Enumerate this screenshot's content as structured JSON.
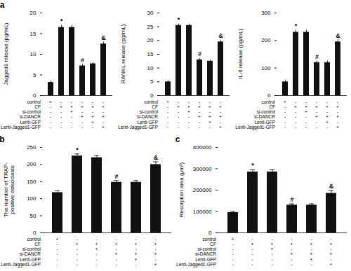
{
  "chart_data": [
    {
      "type": "bar",
      "panel_label": "a",
      "categories": [
        null,
        null,
        null,
        null,
        null,
        null
      ],
      "values": [
        3.2,
        16.5,
        16.5,
        7.2,
        7.7,
        12.5
      ],
      "errors": [
        0.3,
        0.5,
        0.5,
        0.4,
        0.4,
        0.5
      ],
      "y_label": "Jagged1 release (pg/mL)",
      "ylim": [
        0,
        20
      ],
      "yticks": [
        0,
        5,
        10,
        15,
        20
      ],
      "color": "#111111",
      "tick_labels": "y",
      "annotations": [
        {
          "index": 1,
          "text": "*"
        },
        {
          "index": 3,
          "text": "#"
        },
        {
          "index": 5,
          "text": "&"
        }
      ],
      "table": {
        "rows": [
          "control",
          "CF",
          "si-control",
          "si-DANCR",
          "Lenti-GFP",
          "Lenti-Jagged1-GFP"
        ],
        "values": [
          [
            "+",
            "-",
            "-",
            "-",
            "-",
            "-"
          ],
          [
            "-",
            "+",
            "+",
            "+",
            "+",
            "+"
          ],
          [
            "-",
            "-",
            "+",
            "-",
            "-",
            "-"
          ],
          [
            "-",
            "-",
            "-",
            "+",
            "+",
            "+"
          ],
          [
            "-",
            "-",
            "-",
            "-",
            "+",
            "-"
          ],
          [
            "-",
            "-",
            "-",
            "-",
            "-",
            "+"
          ]
        ]
      }
    },
    {
      "type": "bar",
      "categories": [
        null,
        null,
        null,
        null,
        null,
        null
      ],
      "values": [
        5.0,
        25.5,
        25.5,
        13.0,
        12.5,
        19.5
      ],
      "errors": [
        0.4,
        0.5,
        0.5,
        0.5,
        0.4,
        0.6
      ],
      "y_label": "RANKL release (pg/mL)",
      "ylim": [
        0,
        30
      ],
      "yticks": [
        0,
        5,
        10,
        15,
        20,
        25,
        30
      ],
      "color": "#111111",
      "tick_labels": "y",
      "annotations": [
        {
          "index": 1,
          "text": "*"
        },
        {
          "index": 3,
          "text": "#"
        },
        {
          "index": 5,
          "text": "&"
        }
      ],
      "table": {
        "rows": [
          "control",
          "CF",
          "si-control",
          "si-DANCR",
          "Lenti-GFP",
          "Lenti-Jagged1-GFP"
        ],
        "values": [
          [
            "+",
            "-",
            "-",
            "-",
            "-",
            "-"
          ],
          [
            "-",
            "+",
            "+",
            "+",
            "+",
            "+"
          ],
          [
            "-",
            "-",
            "+",
            "-",
            "-",
            "-"
          ],
          [
            "-",
            "-",
            "-",
            "+",
            "+",
            "+"
          ],
          [
            "-",
            "-",
            "-",
            "-",
            "+",
            "-"
          ],
          [
            "-",
            "-",
            "-",
            "-",
            "-",
            "+"
          ]
        ]
      }
    },
    {
      "type": "bar",
      "categories": [
        null,
        null,
        null,
        null,
        null,
        null
      ],
      "values": [
        50,
        230,
        230,
        120,
        120,
        195
      ],
      "errors": [
        5,
        8,
        8,
        6,
        6,
        8
      ],
      "y_label": "IL-6 release (pg/mL)",
      "ylim": [
        0,
        300
      ],
      "yticks": [
        0,
        100,
        200,
        300
      ],
      "color": "#111111",
      "tick_labels": "y",
      "annotations": [
        {
          "index": 1,
          "text": "*"
        },
        {
          "index": 3,
          "text": "#"
        },
        {
          "index": 5,
          "text": "&"
        }
      ],
      "table": {
        "rows": [
          "control",
          "CF",
          "si-control",
          "si-DANCR",
          "Lenti-GFP",
          "Lenti-Jagged1-GFP"
        ],
        "values": [
          [
            "+",
            "-",
            "-",
            "-",
            "-",
            "-"
          ],
          [
            "-",
            "+",
            "+",
            "+",
            "+",
            "+"
          ],
          [
            "-",
            "-",
            "+",
            "-",
            "-",
            "-"
          ],
          [
            "-",
            "-",
            "-",
            "+",
            "+",
            "+"
          ],
          [
            "-",
            "-",
            "-",
            "-",
            "+",
            "-"
          ],
          [
            "-",
            "-",
            "-",
            "-",
            "-",
            "+"
          ]
        ]
      }
    },
    {
      "type": "bar",
      "panel_label": "b",
      "categories": [
        null,
        null,
        null,
        null,
        null,
        null
      ],
      "values": [
        118,
        225,
        220,
        148,
        148,
        200
      ],
      "errors": [
        5,
        6,
        6,
        5,
        5,
        8
      ],
      "y_label": "The number of TRAP-\npositive osteoclasts",
      "ylim": [
        0,
        250
      ],
      "yticks": [
        0,
        50,
        100,
        150,
        200,
        250
      ],
      "color": "#111111",
      "tick_labels": "y",
      "annotations": [
        {
          "index": 1,
          "text": "*"
        },
        {
          "index": 3,
          "text": "#"
        },
        {
          "index": 5,
          "text": "&"
        }
      ],
      "table": {
        "rows": [
          "control",
          "CF",
          "si-control",
          "si-DANCR",
          "Lenti-GFP",
          "Lenti-Jagged1-GFP"
        ],
        "values": [
          [
            "+",
            "-",
            "-",
            "-",
            "-",
            "-"
          ],
          [
            "-",
            "+",
            "+",
            "+",
            "+",
            "+"
          ],
          [
            "-",
            "-",
            "+",
            "-",
            "-",
            "-"
          ],
          [
            "-",
            "-",
            "-",
            "+",
            "+",
            "+"
          ],
          [
            "-",
            "-",
            "-",
            "-",
            "+",
            "-"
          ],
          [
            "-",
            "-",
            "-",
            "-",
            "-",
            "+"
          ]
        ]
      }
    },
    {
      "type": "bar",
      "panel_label": "c",
      "categories": [
        null,
        null,
        null,
        null,
        null,
        null
      ],
      "values": [
        95000,
        285000,
        285000,
        130000,
        130000,
        185000
      ],
      "errors": [
        5000,
        10000,
        10000,
        6000,
        6000,
        12000
      ],
      "y_label": "Resorption area (μm²)",
      "ylim": [
        0,
        400000
      ],
      "yticks": [
        0,
        100000,
        200000,
        300000,
        400000
      ],
      "color": "#111111",
      "tick_labels": "y",
      "annotations": [
        {
          "index": 1,
          "text": "*"
        },
        {
          "index": 3,
          "text": "#"
        },
        {
          "index": 5,
          "text": "&"
        }
      ],
      "table": {
        "rows": [
          "control",
          "CF",
          "si-control",
          "si-DANCR",
          "Lenti-GFP",
          "Lenti-Jagged1-GFP"
        ],
        "values": [
          [
            "+",
            "-",
            "-",
            "-",
            "-",
            "-"
          ],
          [
            "-",
            "+",
            "+",
            "+",
            "+",
            "+"
          ],
          [
            "-",
            "-",
            "+",
            "-",
            "-",
            "-"
          ],
          [
            "-",
            "-",
            "-",
            "+",
            "+",
            "+"
          ],
          [
            "-",
            "-",
            "-",
            "-",
            "+",
            "-"
          ],
          [
            "-",
            "-",
            "-",
            "-",
            "-",
            "+"
          ]
        ]
      }
    }
  ]
}
